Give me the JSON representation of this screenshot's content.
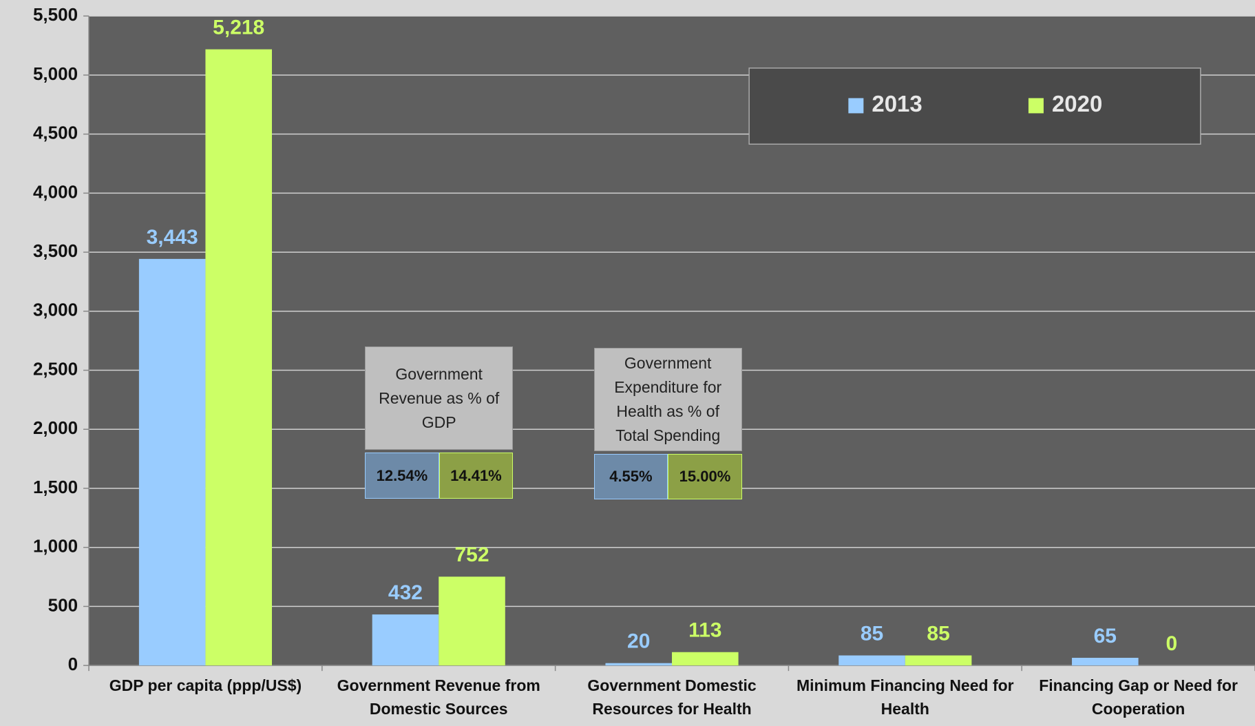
{
  "chart_data": {
    "type": "bar",
    "categories": [
      "GDP per capita (ppp/US$)",
      "Government Revenue from Domestic Sources",
      "Government Domestic Resources for Health",
      "Minimum Financing Need for Health",
      "Financing Gap or Need for Cooperation"
    ],
    "series": [
      {
        "name": "2013",
        "color": "#99ccff",
        "values": [
          3443,
          432,
          20,
          85,
          65
        ],
        "value_labels": [
          "3,443",
          "432",
          "20",
          "85",
          "65"
        ]
      },
      {
        "name": "2020",
        "color": "#ccff66",
        "values": [
          5218,
          752,
          113,
          85,
          0
        ],
        "value_labels": [
          "5,218",
          "752",
          "113",
          "85",
          "0"
        ]
      }
    ],
    "ylim": [
      0,
      5500
    ],
    "yticks": [
      0,
      500,
      {
        "value": 1000,
        "label": "1,000"
      },
      {
        "value": 1500,
        "label": "1,500"
      },
      {
        "value": 2000,
        "label": "2,000"
      },
      {
        "value": 2500,
        "label": "2,500"
      },
      {
        "value": 3000,
        "label": "3,000"
      },
      {
        "value": 3500,
        "label": "3,500"
      },
      {
        "value": 4000,
        "label": "4,000"
      },
      {
        "value": 4500,
        "label": "4,500"
      },
      {
        "value": 5000,
        "label": "5,000"
      },
      {
        "value": 5500,
        "label": "5,500"
      }
    ],
    "grid": true,
    "legend": "top-right",
    "annotations": [
      {
        "text": "Government Revenue as % of GDP",
        "labels": [
          "12.54%",
          "14.41%"
        ]
      },
      {
        "text": "Government Expenditure for Health as % of Total Spending",
        "labels": [
          "4.55%",
          "15.00%"
        ]
      }
    ]
  }
}
